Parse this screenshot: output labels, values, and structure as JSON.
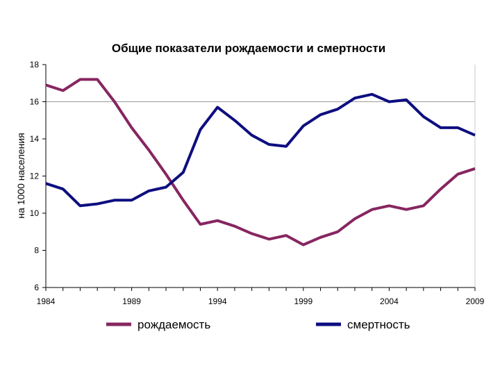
{
  "chart_data": {
    "type": "line",
    "title": "Общие показатели рождаемости и смертности",
    "xlabel": "",
    "ylabel": "на 1000 населения",
    "xlim": [
      1984,
      2009
    ],
    "ylim": [
      6,
      18
    ],
    "xticks": [
      1984,
      1989,
      1994,
      1999,
      2004,
      2009
    ],
    "xtick_labels": [
      "1984",
      "1989",
      "1994",
      "1999",
      "2004",
      "2009"
    ],
    "yticks": [
      6,
      8,
      10,
      12,
      14,
      16,
      18
    ],
    "ytick_labels": [
      "6",
      "8",
      "10",
      "12",
      "14",
      "16",
      "18"
    ],
    "grid": "horizontal at 16",
    "legend_position": "bottom",
    "x": [
      1984,
      1985,
      1986,
      1987,
      1988,
      1989,
      1990,
      1991,
      1992,
      1993,
      1994,
      1995,
      1996,
      1997,
      1998,
      1999,
      2000,
      2001,
      2002,
      2003,
      2004,
      2005,
      2006,
      2007,
      2008,
      2009
    ],
    "series": [
      {
        "name": "рождаемость",
        "color": "#862660",
        "values": [
          16.9,
          16.6,
          17.2,
          17.2,
          16.0,
          14.6,
          13.4,
          12.1,
          10.7,
          9.4,
          9.6,
          9.3,
          8.9,
          8.6,
          8.8,
          8.3,
          8.7,
          9.0,
          9.7,
          10.2,
          10.4,
          10.2,
          10.4,
          11.3,
          12.1,
          12.4
        ]
      },
      {
        "name": "смертность",
        "color": "#0e0e80",
        "values": [
          11.6,
          11.3,
          10.4,
          10.5,
          10.7,
          10.7,
          11.2,
          11.4,
          12.2,
          14.5,
          15.7,
          15.0,
          14.2,
          13.7,
          13.6,
          14.7,
          15.3,
          15.6,
          16.2,
          16.4,
          16.0,
          16.1,
          15.2,
          14.6,
          14.6,
          14.2
        ]
      }
    ]
  }
}
